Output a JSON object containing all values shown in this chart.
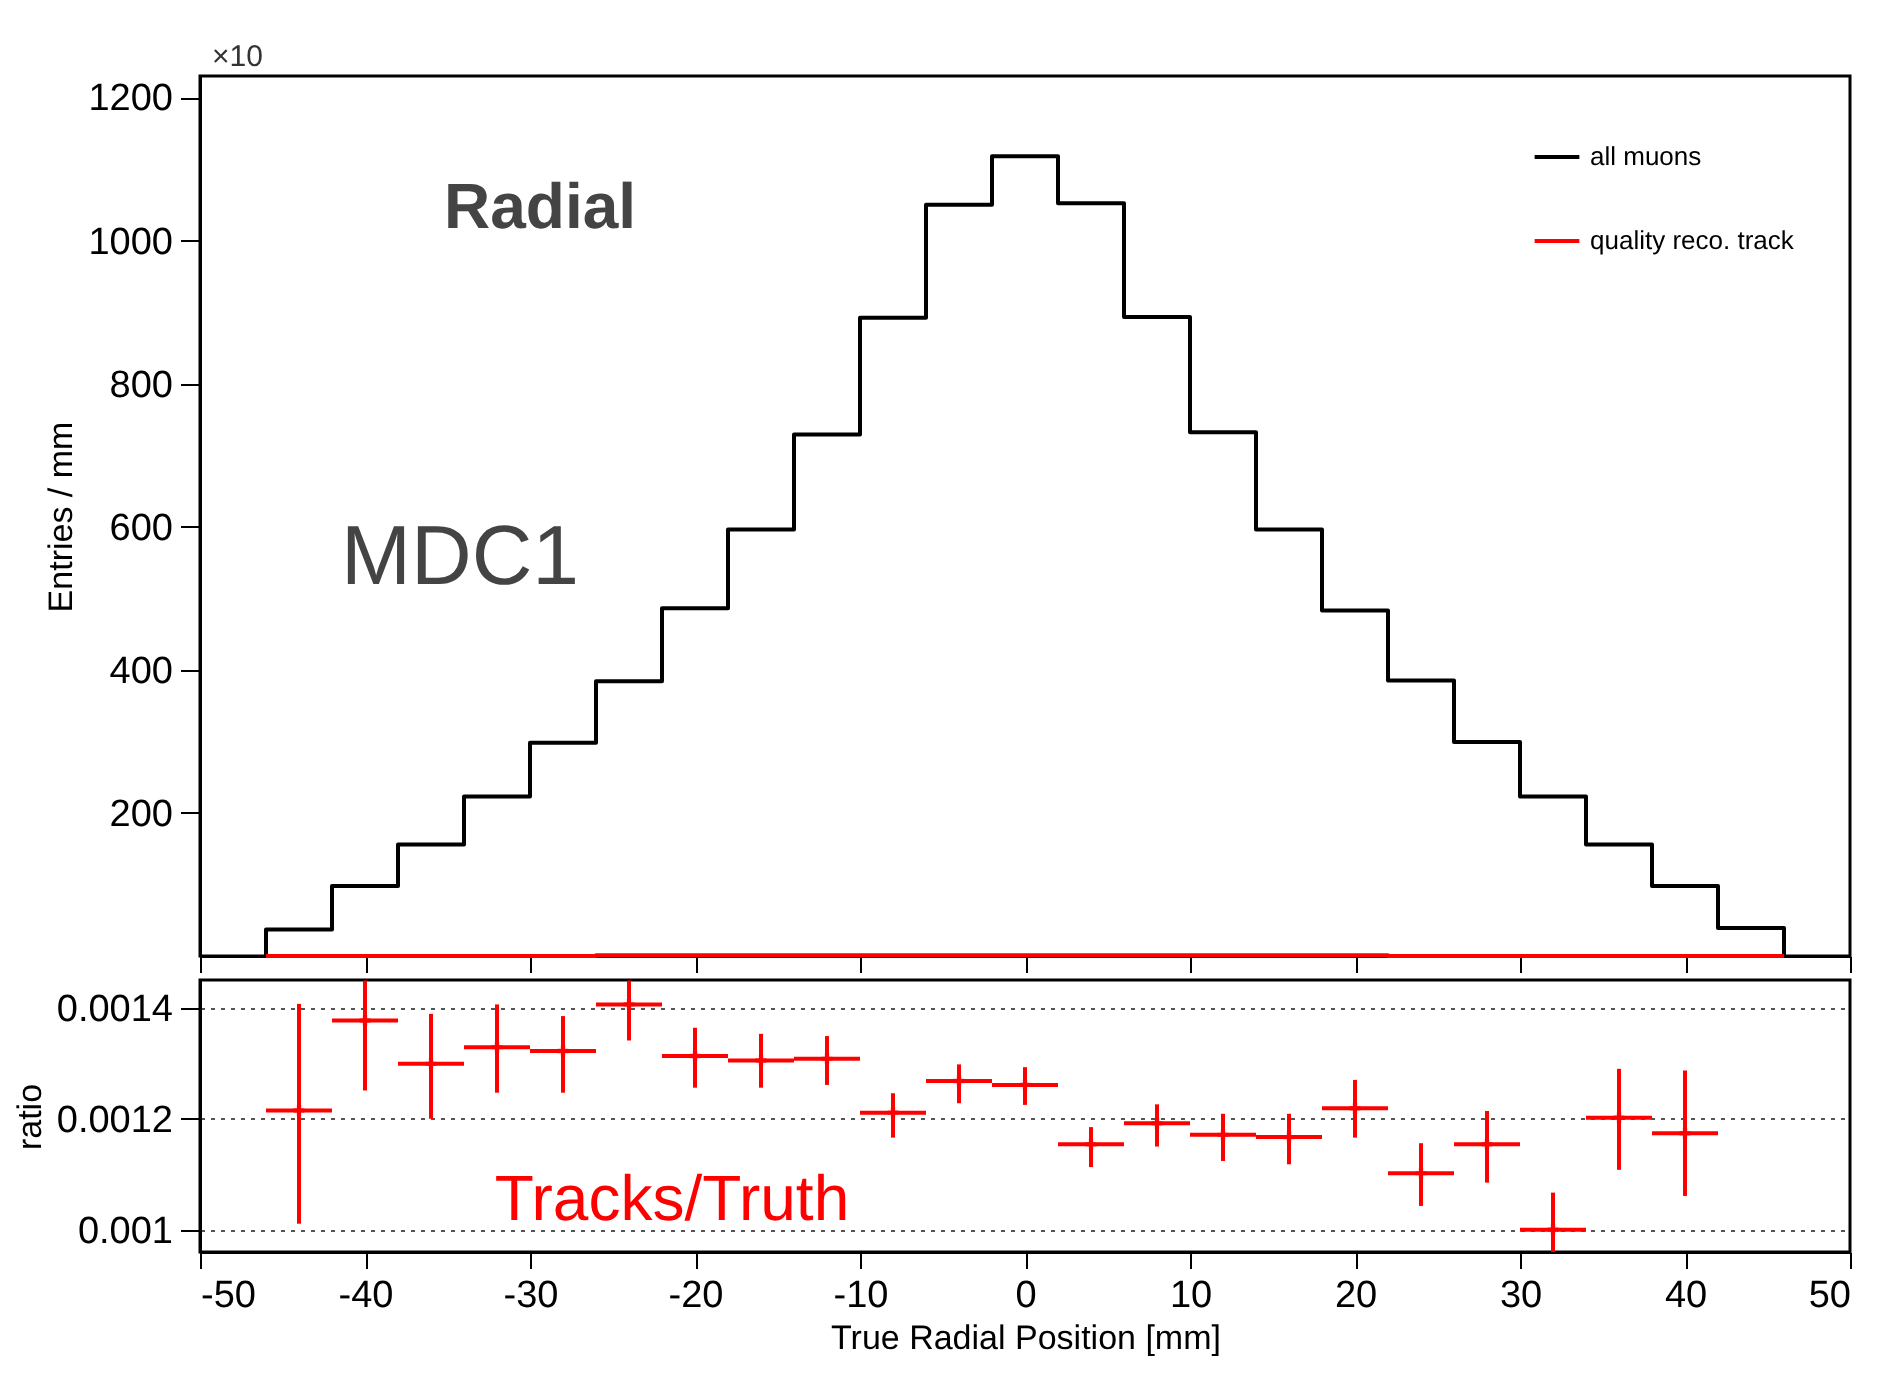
{
  "chart_data": [
    {
      "type": "histogram",
      "ylabel": "Entries / mm",
      "annotations": [
        "×10",
        "Radial",
        "MDC1"
      ],
      "bins": [
        -46,
        -42,
        -38,
        -34,
        -30,
        -26,
        -22,
        -18,
        -14,
        -10,
        -6,
        -2,
        2,
        6,
        10,
        14,
        18,
        22,
        26,
        30,
        34,
        38,
        42,
        46
      ],
      "series": [
        {
          "name": "all muons",
          "color": "#000000",
          "values": [
            37,
            98,
            156,
            223,
            298,
            384,
            486,
            596,
            729,
            892,
            1050,
            1118,
            1052,
            893,
            732,
            596,
            483,
            385,
            299,
            223,
            156,
            98,
            39
          ]
        },
        {
          "name": "quality reco. track",
          "color": "#ff0000",
          "values": [
            0,
            0,
            0,
            0,
            0,
            1,
            1,
            1,
            1,
            1,
            1,
            1,
            1,
            1,
            1,
            1,
            1,
            0,
            0,
            0,
            0,
            0,
            0
          ]
        }
      ],
      "xlim": [
        -50,
        50
      ],
      "xticks": [
        -50,
        -40,
        -30,
        -20,
        -10,
        0,
        10,
        20,
        30,
        40,
        50
      ],
      "ylim": [
        0,
        1230
      ],
      "yticks": [
        200,
        400,
        600,
        800,
        1000,
        1200
      ],
      "tick_labels": "y",
      "legend": "top right",
      "grid": false
    },
    {
      "type": "scatter",
      "xlabel": "True Radial Position [mm]",
      "ylabel": "ratio",
      "annotations": [
        "Tracks/Truth"
      ],
      "x": [
        -44,
        -40,
        -36,
        -32,
        -28,
        -24,
        -20,
        -16,
        -12,
        -8,
        -4,
        0,
        4,
        8,
        12,
        16,
        20,
        24,
        28,
        32,
        36,
        40
      ],
      "series": [
        {
          "color": "#ff0000",
          "values": [
            0.001215,
            0.001377,
            0.001299,
            0.001329,
            0.001322,
            0.001406,
            0.001313,
            0.001305,
            0.001308,
            0.001211,
            0.001268,
            0.001261,
            0.001154,
            0.001192,
            0.001171,
            0.001167,
            0.001219,
            0.001102,
            0.001154,
            0.001,
            0.001202,
            0.001174
          ],
          "errors": [
            [
              0.001011,
              0.001407
            ],
            [
              0.001251,
              0.001449
            ],
            [
              0.0012,
              0.001389
            ],
            [
              0.001247,
              0.001406
            ],
            [
              0.001247,
              0.001385
            ],
            [
              0.001341,
              0.001449
            ],
            [
              0.001256,
              0.001364
            ],
            [
              0.001256,
              0.001353
            ],
            [
              0.001261,
              0.001349
            ],
            [
              0.001166,
              0.001246
            ],
            [
              0.001228,
              0.001298
            ],
            [
              0.001225,
              0.001293
            ],
            [
              0.001113,
              0.001185
            ],
            [
              0.00115,
              0.001226
            ],
            [
              0.001124,
              0.001209
            ],
            [
              0.001118,
              0.001209
            ],
            [
              0.001166,
              0.00127
            ],
            [
              0.001043,
              0.001156
            ],
            [
              0.001085,
              0.001214
            ],
            [
              0.00096,
              0.001067
            ],
            [
              0.001108,
              0.00129
            ],
            [
              0.001061,
              0.001287
            ]
          ],
          "xerrors": [
            2,
            2,
            2,
            2,
            2,
            2,
            2,
            2,
            2,
            2,
            2,
            2,
            2,
            2,
            2,
            2,
            2,
            2,
            2,
            2,
            2,
            2
          ]
        }
      ],
      "marker": "cross",
      "xlim": [
        -50,
        50
      ],
      "xticks": [
        -50,
        -40,
        -30,
        -20,
        -10,
        0,
        10,
        20,
        30,
        40,
        50
      ],
      "ylim": [
        0.00096,
        0.00145
      ],
      "yticks": [
        0.001,
        0.0012,
        0.0014
      ],
      "grid": "y"
    }
  ]
}
